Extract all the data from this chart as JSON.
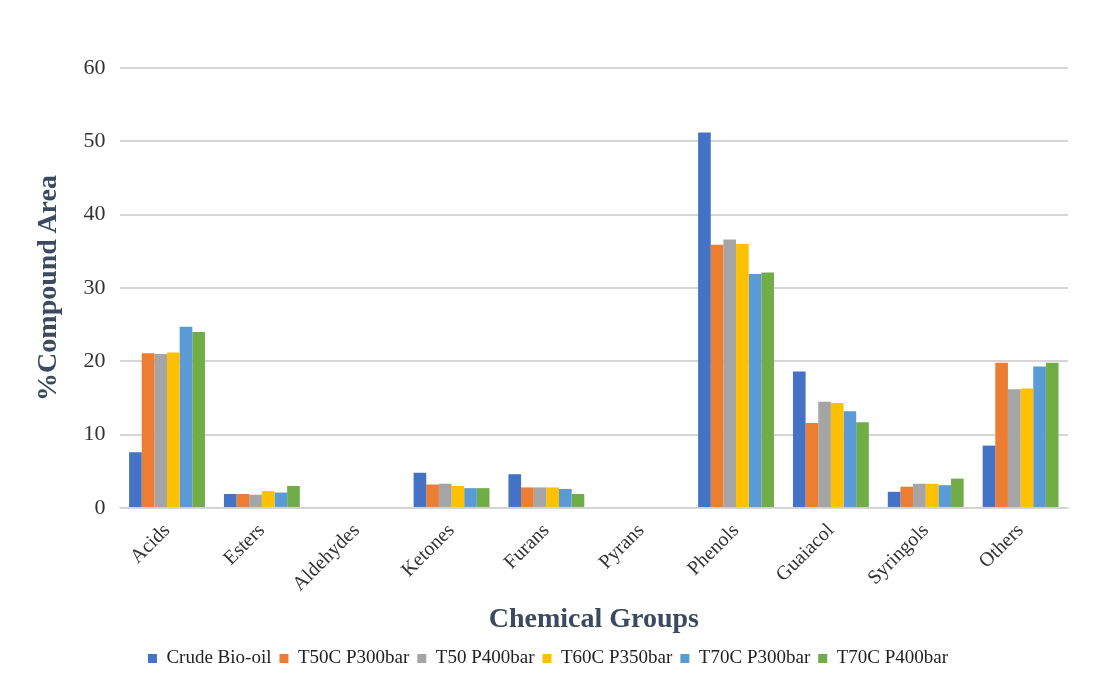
{
  "chart_data": {
    "type": "bar",
    "xlabel": "Chemical Groups",
    "ylabel": "%Compound Area",
    "categories": [
      "Acids",
      "Esters",
      "Aldehydes",
      "Ketones",
      "Furans",
      "Pyrans",
      "Phenols",
      "Guaiacol",
      "Syringols",
      "Others"
    ],
    "series": [
      {
        "name": "Crude Bio-oil",
        "color": "#4472c4",
        "values": [
          7.6,
          1.9,
          0,
          4.8,
          4.6,
          0,
          51.2,
          18.6,
          2.2,
          8.5
        ]
      },
      {
        "name": "T50C P300bar",
        "color": "#ed7d31",
        "values": [
          21.1,
          1.9,
          0,
          3.2,
          2.8,
          0,
          35.9,
          11.6,
          2.9,
          19.8
        ]
      },
      {
        "name": "T50 P400bar",
        "color": "#a5a5a5",
        "values": [
          21,
          1.8,
          0,
          3.3,
          2.8,
          0,
          36.6,
          14.5,
          3.3,
          16.2
        ]
      },
      {
        "name": "T60C P350bar",
        "color": "#ffc000",
        "values": [
          21.2,
          2.3,
          0,
          3,
          2.8,
          0,
          36,
          14.3,
          3.3,
          16.3
        ]
      },
      {
        "name": "T70C P300bar",
        "color": "#5b9bd5",
        "values": [
          24.7,
          2.1,
          0,
          2.7,
          2.6,
          0,
          31.9,
          13.2,
          3.1,
          19.3
        ]
      },
      {
        "name": "T70C P400bar",
        "color": "#70ad47",
        "values": [
          24,
          3,
          0,
          2.7,
          1.9,
          0,
          32.1,
          11.7,
          4,
          19.8
        ]
      }
    ],
    "ylim": [
      0,
      60
    ],
    "yticks": [
      0,
      10,
      20,
      30,
      40,
      50,
      60
    ],
    "grid": "y",
    "legend": "bottom"
  }
}
